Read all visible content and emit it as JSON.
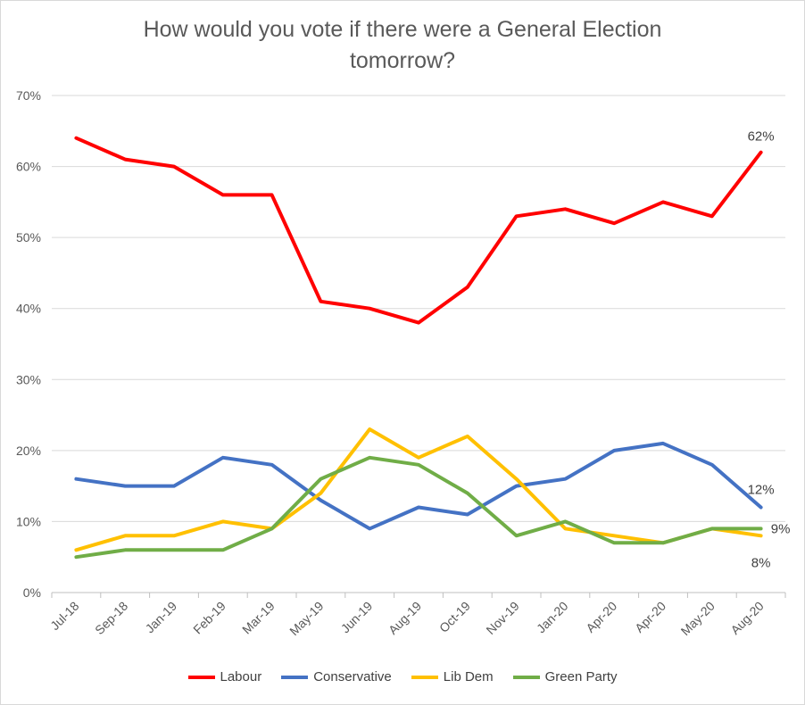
{
  "chart_data": {
    "type": "line",
    "title_lines": [
      "How would you vote if there were a General Election",
      "tomorrow?"
    ],
    "categories": [
      "Jul-18",
      "Sep-18",
      "Jan-19",
      "Feb-19",
      "Mar-19",
      "May-19",
      "Jun-19",
      "Aug-19",
      "Oct-19",
      "Nov-19",
      "Jan-20",
      "Apr-20",
      "Apr-20",
      "May-20",
      "Aug-20"
    ],
    "ylim": [
      0,
      70
    ],
    "yticks": [
      "0%",
      "10%",
      "20%",
      "30%",
      "40%",
      "50%",
      "60%",
      "70%"
    ],
    "ytick_values": [
      0,
      10,
      20,
      30,
      40,
      50,
      60,
      70
    ],
    "grid": true,
    "legend_position": "bottom",
    "series": [
      {
        "name": "Labour",
        "color": "#ff0000",
        "values": [
          64,
          61,
          60,
          56,
          56,
          41,
          40,
          38,
          43,
          53,
          54,
          52,
          55,
          53,
          62
        ],
        "end_label": "62%"
      },
      {
        "name": "Conservative",
        "color": "#4472c4",
        "values": [
          16,
          15,
          15,
          19,
          18,
          13,
          9,
          12,
          11,
          15,
          16,
          20,
          21,
          18,
          12
        ],
        "end_label": "12%"
      },
      {
        "name": "Lib Dem",
        "color": "#ffc000",
        "values": [
          6,
          8,
          8,
          10,
          9,
          14,
          23,
          19,
          22,
          16,
          9,
          8,
          7,
          9,
          8
        ],
        "end_label": "8%"
      },
      {
        "name": "Green Party",
        "color": "#70ad47",
        "values": [
          5,
          6,
          6,
          6,
          9,
          16,
          19,
          18,
          14,
          8,
          10,
          7,
          7,
          9,
          9
        ],
        "end_label": "9%"
      }
    ]
  }
}
